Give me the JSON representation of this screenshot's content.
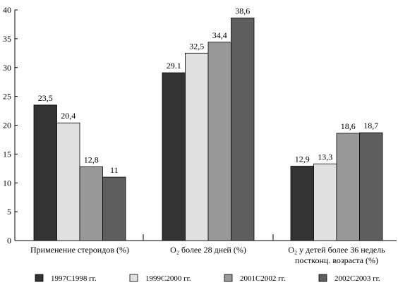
{
  "chart_data": {
    "type": "bar",
    "categories": [
      {
        "lines": [
          "Применение  стероидов (%)"
        ]
      },
      {
        "lines": [
          "O₂ более 28 дней (%)"
        ]
      },
      {
        "lines": [
          "O₂ у детей более 36 недель",
          "постконц. возраста (%)"
        ]
      }
    ],
    "series": [
      {
        "name": "1997C1998   гг.",
        "color": "#333333",
        "values": [
          23.5,
          29.1,
          12.9
        ],
        "labels": [
          "23,5",
          "29.1",
          "12,9"
        ]
      },
      {
        "name": "1999C2000   гг.",
        "color": "#e0e0e0",
        "values": [
          20.4,
          32.5,
          13.3
        ],
        "labels": [
          "20,4",
          "32,5",
          "13,3"
        ]
      },
      {
        "name": "2001C2002   гг.",
        "color": "#999999",
        "values": [
          12.8,
          34.4,
          18.6
        ],
        "labels": [
          "12,8",
          "34,4",
          "18,6"
        ]
      },
      {
        "name": "2002C2003   гг.",
        "color": "#5e5e5e",
        "values": [
          11,
          38.6,
          18.7
        ],
        "labels": [
          "11",
          "38,6",
          "18,7"
        ]
      }
    ],
    "ylim": [
      0,
      40
    ],
    "yticks": [
      0,
      5,
      10,
      15,
      20,
      25,
      30,
      35,
      40
    ],
    "grid": false,
    "legend_position": "bottom"
  }
}
